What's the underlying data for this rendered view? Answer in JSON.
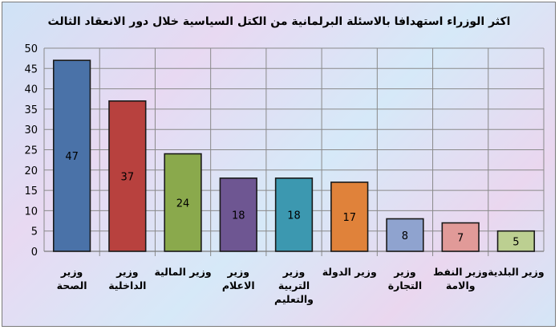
{
  "chart_data": {
    "type": "bar",
    "title": "اكثر الوزراء استهدافا بالاسئلة البرلمانية من الكتل السياسية خلال دور الانعقاد الثالث",
    "categories": [
      [
        "وزير",
        "الصحة"
      ],
      [
        "وزير",
        "الداخلية"
      ],
      [
        "وزير المالية"
      ],
      [
        "وزير",
        "الاعلام"
      ],
      [
        "وزير",
        "التربية",
        "والتعليم"
      ],
      [
        "وزير الدولة"
      ],
      [
        "وزير",
        "التجارة"
      ],
      [
        "وزير النفط",
        "والامة"
      ],
      [
        "وزير البلدية"
      ]
    ],
    "values": [
      47,
      37,
      24,
      18,
      18,
      17,
      8,
      7,
      5
    ],
    "colors": [
      "#4a72a8",
      "#b8413e",
      "#8aa94c",
      "#6e5692",
      "#3c98b0",
      "#e0823a",
      "#8fa3cf",
      "#e19a98",
      "#bccf91"
    ],
    "ylim": [
      0,
      50
    ],
    "yticks": [
      0,
      5,
      10,
      15,
      20,
      25,
      30,
      35,
      40,
      45,
      50
    ],
    "grid": true,
    "xlabel": "",
    "ylabel": ""
  }
}
